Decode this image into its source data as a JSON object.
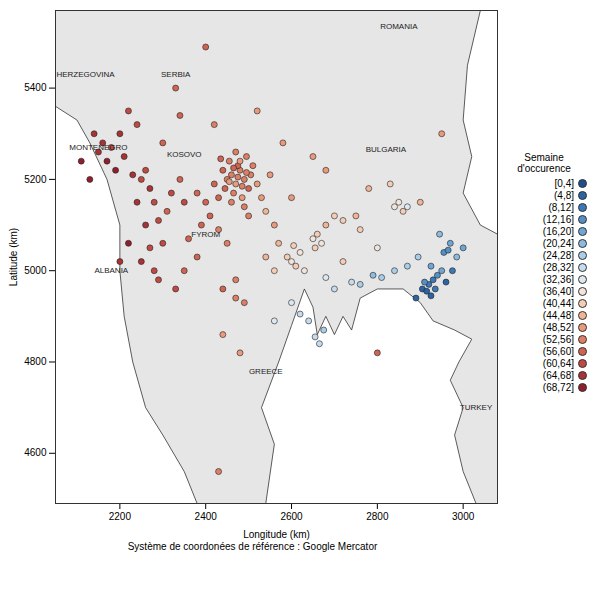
{
  "chart_data": {
    "type": "scatter",
    "x_label": "Longitude (km)",
    "y_label": "Latitude (km)",
    "caption": "Système de coordonées de référence : Google Mercator",
    "xlim": [
      2050,
      3080
    ],
    "ylim": [
      4490,
      5570
    ],
    "xticks": [
      2200,
      2400,
      2600,
      2800,
      3000
    ],
    "yticks": [
      4600,
      4800,
      5000,
      5200,
      5400
    ],
    "legend": "right",
    "legend_title": "Semaine d'occurence",
    "bins": [
      0,
      4,
      8,
      12,
      16,
      20,
      24,
      28,
      32,
      36,
      40,
      44,
      48,
      52,
      56,
      60,
      64,
      68,
      72
    ],
    "bin_labels": [
      "[0,4]",
      "(4,8]",
      "(8,12]",
      "(12,16]",
      "(16,20]",
      "(20,24]",
      "(24,28]",
      "(28,32]",
      "(32,36]",
      "(36,40]",
      "(40,44]",
      "(44,48]",
      "(48,52]",
      "(52,56]",
      "(56,60]",
      "(60,64]",
      "(64,68]",
      "(68,72]"
    ],
    "colors": [
      "#1f4e8c",
      "#2b63a3",
      "#3c78b6",
      "#5490c6",
      "#6fa6d3",
      "#8dbbdf",
      "#aacde8",
      "#c6dcee",
      "#dde8f1",
      "#f2e4da",
      "#f4cdb7",
      "#f0b497",
      "#e89a7c",
      "#dc7f65",
      "#cf6452",
      "#bf4a42",
      "#a83336",
      "#901f2d"
    ],
    "place_labels": [
      {
        "text": "ROMANIA",
        "x": 2850,
        "y": 5535
      },
      {
        "text": "HERZEGOVINA",
        "x": 2120,
        "y": 5430
      },
      {
        "text": "SERBIA",
        "x": 2330,
        "y": 5430
      },
      {
        "text": "MONTENEGRO",
        "x": 2150,
        "y": 5270
      },
      {
        "text": "KOSOVO",
        "x": 2350,
        "y": 5255
      },
      {
        "text": "BULGARIA",
        "x": 2820,
        "y": 5265
      },
      {
        "text": "FYROM",
        "x": 2400,
        "y": 5080
      },
      {
        "text": "ALBANIA",
        "x": 2180,
        "y": 5000
      },
      {
        "text": "GREECE",
        "x": 2540,
        "y": 4780
      },
      {
        "text": "TURKEY",
        "x": 3030,
        "y": 4700
      }
    ],
    "water": [
      [
        [
          2540,
          4490
        ],
        [
          2560,
          4620
        ],
        [
          2530,
          4700
        ],
        [
          2570,
          4800
        ],
        [
          2600,
          4880
        ],
        [
          2630,
          4960
        ],
        [
          2650,
          4920
        ],
        [
          2660,
          4860
        ],
        [
          2680,
          4900
        ],
        [
          2700,
          4860
        ],
        [
          2720,
          4900
        ],
        [
          2740,
          4870
        ],
        [
          2760,
          4940
        ],
        [
          2800,
          4960
        ],
        [
          2860,
          4960
        ],
        [
          2900,
          4930
        ],
        [
          2930,
          4890
        ],
        [
          2980,
          4870
        ],
        [
          3020,
          4850
        ],
        [
          2990,
          4800
        ],
        [
          2970,
          4760
        ],
        [
          3000,
          4700
        ],
        [
          2980,
          4640
        ],
        [
          3000,
          4560
        ],
        [
          3030,
          4490
        ]
      ],
      [
        [
          2050,
          5360
        ],
        [
          2100,
          5330
        ],
        [
          2130,
          5280
        ],
        [
          2170,
          5200
        ],
        [
          2200,
          5100
        ],
        [
          2200,
          5000
        ],
        [
          2210,
          4900
        ],
        [
          2230,
          4800
        ],
        [
          2260,
          4700
        ],
        [
          2300,
          4640
        ],
        [
          2350,
          4560
        ],
        [
          2380,
          4490
        ],
        [
          2050,
          4490
        ]
      ],
      [
        [
          3040,
          5570
        ],
        [
          3010,
          5450
        ],
        [
          3000,
          5330
        ],
        [
          3020,
          5250
        ],
        [
          3000,
          5170
        ],
        [
          3040,
          5100
        ],
        [
          3080,
          5080
        ],
        [
          3080,
          5570
        ]
      ]
    ],
    "points": [
      [
        2905,
        4960,
        6
      ],
      [
        2915,
        4955,
        8
      ],
      [
        2920,
        4970,
        10
      ],
      [
        2925,
        4945,
        6
      ],
      [
        2930,
        4980,
        12
      ],
      [
        2910,
        4975,
        14
      ],
      [
        2935,
        4960,
        10
      ],
      [
        2940,
        4990,
        16
      ],
      [
        2950,
        5000,
        18
      ],
      [
        2960,
        4975,
        6
      ],
      [
        2955,
        5040,
        14
      ],
      [
        2970,
        5060,
        20
      ],
      [
        2985,
        5030,
        22
      ],
      [
        3000,
        5050,
        18
      ],
      [
        2975,
        5000,
        10
      ],
      [
        2945,
        5080,
        22
      ],
      [
        2890,
        4940,
        8
      ],
      [
        2925,
        5010,
        20
      ],
      [
        2965,
        5045,
        16
      ],
      [
        2895,
        5030,
        26
      ],
      [
        2790,
        4990,
        24
      ],
      [
        2760,
        4970,
        28
      ],
      [
        2740,
        4975,
        30
      ],
      [
        2810,
        4985,
        26
      ],
      [
        2840,
        5000,
        28
      ],
      [
        2870,
        5010,
        26
      ],
      [
        2655,
        4855,
        30
      ],
      [
        2665,
        4840,
        32
      ],
      [
        2675,
        4870,
        28
      ],
      [
        2640,
        4890,
        32
      ],
      [
        2620,
        4905,
        30
      ],
      [
        2600,
        4930,
        34
      ],
      [
        2560,
        4890,
        34
      ],
      [
        2700,
        4960,
        32
      ],
      [
        2680,
        4985,
        34
      ],
      [
        2600,
        5020,
        40
      ],
      [
        2610,
        5010,
        42
      ],
      [
        2620,
        5040,
        38
      ],
      [
        2590,
        5030,
        44
      ],
      [
        2630,
        5000,
        40
      ],
      [
        2605,
        5055,
        44
      ],
      [
        2650,
        5070,
        40
      ],
      [
        2660,
        5080,
        42
      ],
      [
        2670,
        5060,
        38
      ],
      [
        2655,
        5050,
        44
      ],
      [
        2680,
        5100,
        46
      ],
      [
        2700,
        5120,
        44
      ],
      [
        2720,
        5110,
        42
      ],
      [
        2750,
        5120,
        46
      ],
      [
        2840,
        5140,
        38
      ],
      [
        2850,
        5150,
        40
      ],
      [
        2860,
        5130,
        42
      ],
      [
        2870,
        5140,
        36
      ],
      [
        2830,
        5190,
        44
      ],
      [
        2780,
        5180,
        48
      ],
      [
        2560,
        5000,
        44
      ],
      [
        2540,
        5030,
        46
      ],
      [
        2570,
        5060,
        48
      ],
      [
        2800,
        5050,
        40
      ],
      [
        2760,
        5090,
        44
      ],
      [
        2950,
        5300,
        50
      ],
      [
        2900,
        5150,
        46
      ],
      [
        2540,
        5130,
        46
      ],
      [
        2720,
        5020,
        42
      ],
      [
        2450,
        5200,
        54
      ],
      [
        2460,
        5210,
        56
      ],
      [
        2470,
        5190,
        52
      ],
      [
        2480,
        5220,
        54
      ],
      [
        2490,
        5200,
        56
      ],
      [
        2500,
        5180,
        58
      ],
      [
        2455,
        5240,
        56
      ],
      [
        2465,
        5170,
        54
      ],
      [
        2475,
        5230,
        58
      ],
      [
        2485,
        5160,
        52
      ],
      [
        2495,
        5250,
        56
      ],
      [
        2505,
        5210,
        54
      ],
      [
        2445,
        5180,
        58
      ],
      [
        2460,
        5150,
        56
      ],
      [
        2470,
        5260,
        54
      ],
      [
        2480,
        5240,
        52
      ],
      [
        2490,
        5140,
        56
      ],
      [
        2510,
        5230,
        54
      ],
      [
        2440,
        5220,
        60
      ],
      [
        2500,
        5120,
        56
      ],
      [
        2420,
        5190,
        58
      ],
      [
        2430,
        5160,
        60
      ],
      [
        2475,
        5205,
        56
      ],
      [
        2465,
        5225,
        58
      ],
      [
        2485,
        5185,
        54
      ],
      [
        2455,
        5195,
        52
      ],
      [
        2495,
        5215,
        54
      ],
      [
        2435,
        5245,
        58
      ],
      [
        2520,
        5190,
        50
      ],
      [
        2530,
        5160,
        50
      ],
      [
        2400,
        5150,
        58
      ],
      [
        2380,
        5170,
        60
      ],
      [
        2410,
        5120,
        58
      ],
      [
        2390,
        5100,
        60
      ],
      [
        2430,
        5090,
        56
      ],
      [
        2450,
        5060,
        56
      ],
      [
        2470,
        4980,
        54
      ],
      [
        2490,
        4930,
        54
      ],
      [
        2470,
        4940,
        56
      ],
      [
        2440,
        4960,
        58
      ],
      [
        2480,
        4820,
        52
      ],
      [
        2440,
        4860,
        52
      ],
      [
        2380,
        5030,
        58
      ],
      [
        2360,
        5070,
        60
      ],
      [
        2420,
        5320,
        56
      ],
      [
        2400,
        5490,
        58
      ],
      [
        2330,
        5400,
        60
      ],
      [
        2340,
        5340,
        58
      ],
      [
        2550,
        5210,
        50
      ],
      [
        2560,
        5100,
        50
      ],
      [
        2600,
        5160,
        50
      ],
      [
        2520,
        5350,
        52
      ],
      [
        2650,
        5250,
        52
      ],
      [
        2680,
        5220,
        50
      ],
      [
        2430,
        4560,
        56
      ],
      [
        2800,
        4820,
        58
      ],
      [
        2580,
        5280,
        50
      ],
      [
        2150,
        5260,
        68
      ],
      [
        2160,
        5280,
        66
      ],
      [
        2170,
        5240,
        70
      ],
      [
        2180,
        5270,
        64
      ],
      [
        2200,
        5300,
        66
      ],
      [
        2210,
        5250,
        68
      ],
      [
        2220,
        5350,
        64
      ],
      [
        2190,
        5220,
        70
      ],
      [
        2230,
        5210,
        66
      ],
      [
        2250,
        5200,
        62
      ],
      [
        2260,
        5220,
        64
      ],
      [
        2270,
        5180,
        66
      ],
      [
        2240,
        5150,
        68
      ],
      [
        2280,
        5150,
        64
      ],
      [
        2260,
        5100,
        66
      ],
      [
        2290,
        5110,
        62
      ],
      [
        2270,
        5050,
        64
      ],
      [
        2300,
        5060,
        62
      ],
      [
        2250,
        5020,
        66
      ],
      [
        2280,
        5000,
        62
      ],
      [
        2200,
        5020,
        68
      ],
      [
        2220,
        5060,
        70
      ],
      [
        2310,
        5130,
        60
      ],
      [
        2320,
        5170,
        62
      ],
      [
        2340,
        5200,
        60
      ],
      [
        2350,
        5150,
        62
      ],
      [
        2300,
        5280,
        60
      ],
      [
        2130,
        5200,
        70
      ],
      [
        2110,
        5240,
        72
      ],
      [
        2140,
        5300,
        68
      ],
      [
        2240,
        5320,
        62
      ],
      [
        2290,
        4980,
        64
      ],
      [
        2330,
        4960,
        62
      ],
      [
        2350,
        5000,
        60
      ]
    ]
  }
}
